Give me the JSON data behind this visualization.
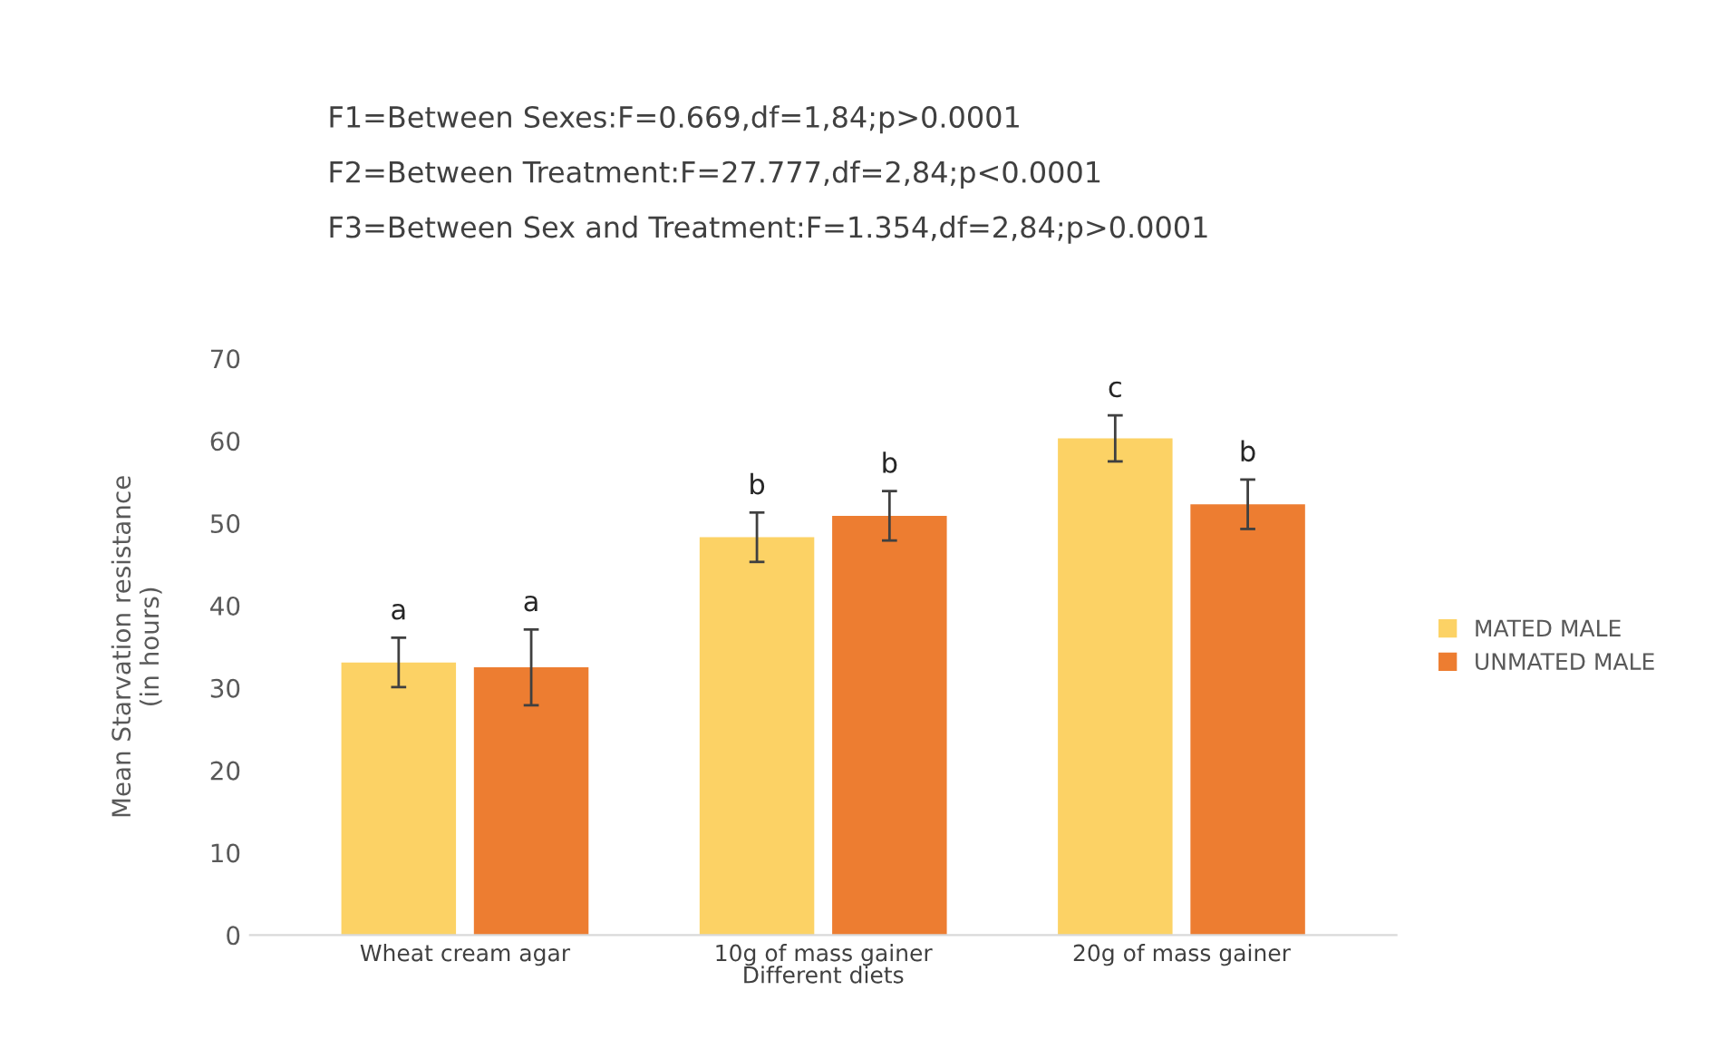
{
  "chart_data": {
    "type": "bar",
    "categories": [
      "Wheat cream agar",
      "10g of mass gainer",
      "20g of mass gainer"
    ],
    "series": [
      {
        "name": "MATED MALE",
        "color": "#fcd265",
        "values": [
          33.1,
          48.3,
          60.3
        ],
        "errors": [
          3,
          3,
          2.8
        ],
        "value_labels": [
          "a",
          "b",
          "c"
        ]
      },
      {
        "name": "UNMATED MALE",
        "color": "#ed7d31",
        "values": [
          32.5,
          50.9,
          52.3
        ],
        "errors": [
          4.6,
          3,
          3
        ],
        "value_labels": [
          "a",
          "b",
          "b"
        ]
      }
    ],
    "xlabel": "Different diets",
    "ylabel": "Mean Starvation resistance\n(in hours)",
    "ylim": [
      0,
      70
    ],
    "yticks": [
      0,
      10,
      20,
      30,
      40,
      50,
      60,
      70
    ],
    "grid": false,
    "legend": "right",
    "annotations": [
      "F1=Between Sexes:F=0.669,df=1,84;p>0.0001",
      "F2=Between Treatment:F=27.777,df=2,84;p<0.0001",
      "F3=Between Sex and Treatment:F=1.354,df=2,84;p>0.0001"
    ]
  }
}
